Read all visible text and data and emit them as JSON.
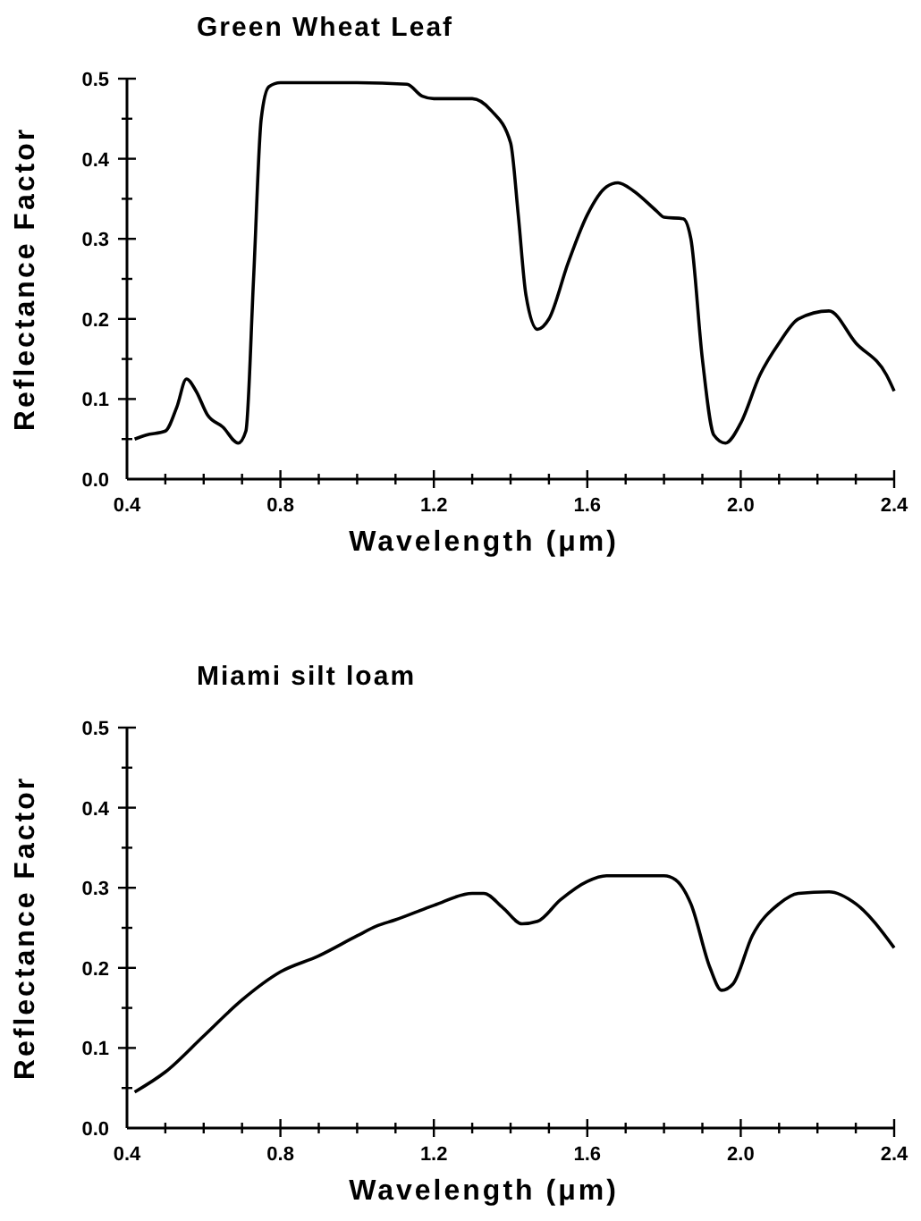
{
  "chart_data": [
    {
      "type": "line",
      "title": "Green Wheat Leaf",
      "xlabel": "Wavelength (μm)",
      "ylabel": "Reflectance Factor",
      "xlim": [
        0.4,
        2.4
      ],
      "ylim": [
        0,
        0.5
      ],
      "xticks": [
        0.4,
        {
          "value": 0.5,
          "label": null
        },
        {
          "value": 0.6,
          "label": null
        },
        {
          "value": 0.7,
          "label": null
        },
        0.8,
        {
          "value": 0.9,
          "label": null
        },
        {
          "value": 1.0,
          "label": null
        },
        {
          "value": 1.1,
          "label": null
        },
        1.2,
        {
          "value": 1.3,
          "label": null
        },
        {
          "value": 1.4,
          "label": null
        },
        {
          "value": 1.5,
          "label": null
        },
        1.6,
        {
          "value": 1.7,
          "label": null
        },
        {
          "value": 1.8,
          "label": null
        },
        {
          "value": 1.9,
          "label": null
        },
        {
          "value": 2.0,
          "label": "2.0"
        },
        {
          "value": 2.1,
          "label": null
        },
        {
          "value": 2.2,
          "label": null
        },
        {
          "value": 2.3,
          "label": null
        },
        2.4
      ],
      "yticks": [
        {
          "value": 0,
          "label": "0.0"
        },
        {
          "value": 0.05,
          "label": null
        },
        0.1,
        {
          "value": 0.15,
          "label": null
        },
        0.2,
        {
          "value": 0.25,
          "label": null
        },
        0.3,
        {
          "value": 0.35,
          "label": null
        },
        0.4,
        {
          "value": 0.45,
          "label": null
        },
        0.5
      ],
      "grid": false,
      "marker": "none",
      "line_style": "solid",
      "series": [
        {
          "color": "#000000",
          "x": [
            0.42,
            0.45,
            0.5,
            0.53,
            0.555,
            0.58,
            0.61,
            0.65,
            0.69,
            0.71,
            0.73,
            0.75,
            0.77,
            0.8,
            1.0,
            1.13,
            1.17,
            1.2,
            1.3,
            1.35,
            1.4,
            1.42,
            1.44,
            1.47,
            1.5,
            1.55,
            1.6,
            1.65,
            1.68,
            1.72,
            1.78,
            1.8,
            1.85,
            1.87,
            1.9,
            1.93,
            1.96,
            2.0,
            2.05,
            2.1,
            2.15,
            2.23,
            2.3,
            2.38,
            2.4
          ],
          "values": [
            0.05,
            0.055,
            0.06,
            0.09,
            0.125,
            0.11,
            0.08,
            0.065,
            0.045,
            0.06,
            0.25,
            0.45,
            0.49,
            0.495,
            0.495,
            0.493,
            0.478,
            0.475,
            0.475,
            0.46,
            0.42,
            0.33,
            0.23,
            0.187,
            0.2,
            0.27,
            0.33,
            0.365,
            0.37,
            0.36,
            0.335,
            0.327,
            0.325,
            0.3,
            0.15,
            0.055,
            0.045,
            0.07,
            0.13,
            0.17,
            0.2,
            0.21,
            0.17,
            0.13,
            0.11
          ]
        }
      ]
    },
    {
      "type": "line",
      "title": "Miami silt loam",
      "xlabel": "Wavelength (μm)",
      "ylabel": "Reflectance Factor",
      "xlim": [
        0.4,
        2.4
      ],
      "ylim": [
        0,
        0.5
      ],
      "xticks": [
        0.4,
        {
          "value": 0.5,
          "label": null
        },
        {
          "value": 0.6,
          "label": null
        },
        {
          "value": 0.7,
          "label": null
        },
        0.8,
        {
          "value": 0.9,
          "label": null
        },
        {
          "value": 1.0,
          "label": null
        },
        {
          "value": 1.1,
          "label": null
        },
        1.2,
        {
          "value": 1.3,
          "label": null
        },
        {
          "value": 1.4,
          "label": null
        },
        {
          "value": 1.5,
          "label": null
        },
        1.6,
        {
          "value": 1.7,
          "label": null
        },
        {
          "value": 1.8,
          "label": null
        },
        {
          "value": 1.9,
          "label": null
        },
        {
          "value": 2.0,
          "label": "2.0"
        },
        {
          "value": 2.1,
          "label": null
        },
        {
          "value": 2.2,
          "label": null
        },
        {
          "value": 2.3,
          "label": null
        },
        2.4
      ],
      "yticks": [
        {
          "value": 0,
          "label": "0.0"
        },
        {
          "value": 0.05,
          "label": null
        },
        0.1,
        {
          "value": 0.15,
          "label": null
        },
        0.2,
        {
          "value": 0.25,
          "label": null
        },
        0.3,
        {
          "value": 0.35,
          "label": null
        },
        0.4,
        {
          "value": 0.45,
          "label": null
        },
        0.5
      ],
      "grid": false,
      "marker": "none",
      "line_style": "solid",
      "series": [
        {
          "color": "#000000",
          "x": [
            0.42,
            0.5,
            0.6,
            0.7,
            0.8,
            0.9,
            1.0,
            1.05,
            1.1,
            1.2,
            1.3,
            1.33,
            1.38,
            1.43,
            1.47,
            1.53,
            1.6,
            1.65,
            1.8,
            1.83,
            1.87,
            1.92,
            1.95,
            1.98,
            2.03,
            2.1,
            2.15,
            2.23,
            2.3,
            2.4
          ],
          "values": [
            0.045,
            0.07,
            0.115,
            0.16,
            0.195,
            0.215,
            0.24,
            0.252,
            0.26,
            0.278,
            0.293,
            0.293,
            0.275,
            0.255,
            0.258,
            0.285,
            0.308,
            0.315,
            0.315,
            0.31,
            0.28,
            0.2,
            0.172,
            0.18,
            0.24,
            0.28,
            0.293,
            0.295,
            0.28,
            0.225
          ]
        }
      ]
    }
  ]
}
